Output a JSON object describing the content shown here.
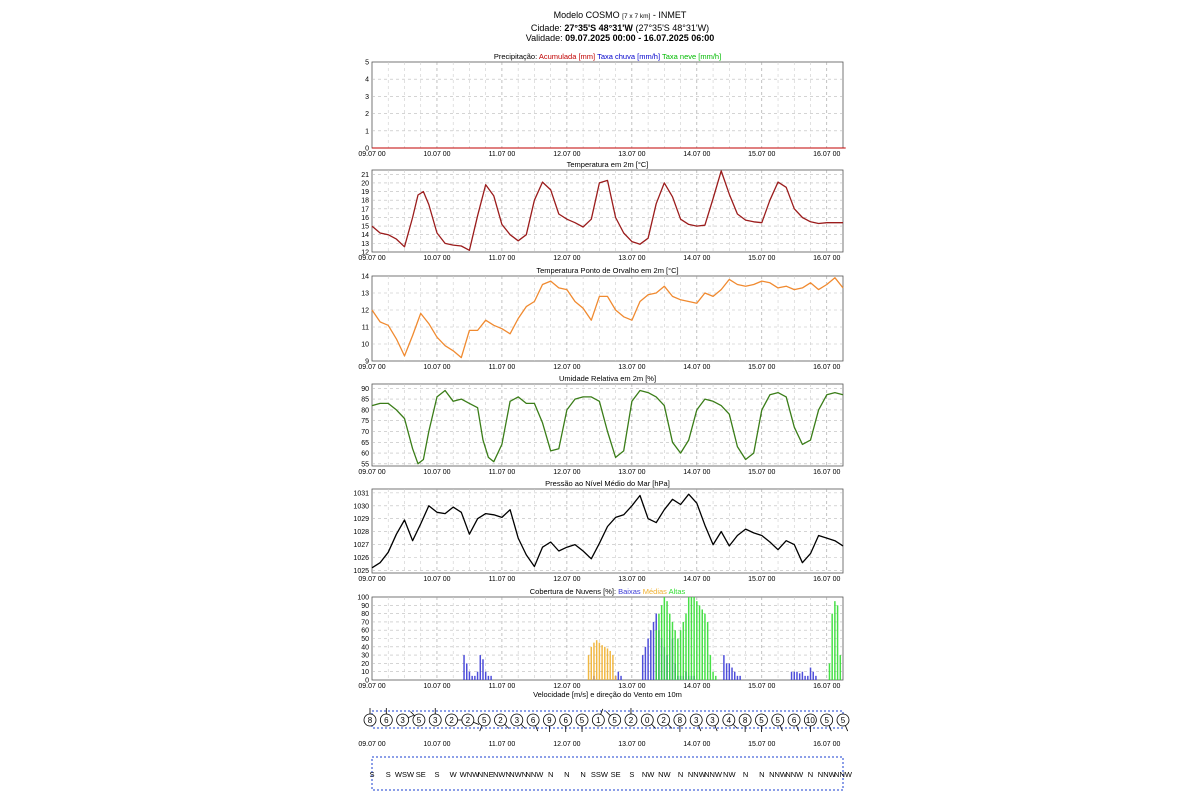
{
  "header": {
    "line1_prefix": "Modelo COSMO",
    "line1_res": "[7 x 7 km]",
    "line1_suffix": "- INMET",
    "city_label": "Cidade:",
    "city_coords": "27°35'S 48°31'W",
    "city_coords_alt": "(27°35'S 48°31'W)",
    "valid_label": "Validade:",
    "valid_range": "09.07.2025 00:00 - 16.07.2025 06:00"
  },
  "colors": {
    "accum": "#c00000",
    "rain": "#0000cc",
    "snow": "#00bb00",
    "temp": "#9b1c1c",
    "dew": "#f08a30",
    "hum": "#3a7d18",
    "press": "#000000",
    "low": "#3b3bd6",
    "mid": "#f0b030",
    "high": "#33dd33",
    "wind_box": "#1a3fd0"
  },
  "xticks": [
    "09.07 00",
    "10.07 00",
    "11.07 00",
    "12.07 00",
    "13.07 00",
    "14.07 00",
    "15.07 00",
    "16.07 00"
  ],
  "chart_data": [
    {
      "id": "precip",
      "type": "line",
      "title_parts": [
        {
          "text": "Precipitação: ",
          "color": "#000000"
        },
        {
          "text": "Acumulada [mm]",
          "color": "#c00000"
        },
        {
          "text": " Taxa chuva [mm/h]",
          "color": "#0000cc"
        },
        {
          "text": " Taxa neve [mm/h]",
          "color": "#00bb00"
        }
      ],
      "ylim": [
        0,
        5
      ],
      "yticks": [
        0,
        1,
        2,
        3,
        4,
        5
      ],
      "series": [
        {
          "color": "#c00000",
          "t": [
            0,
            175
          ],
          "values": [
            0,
            0
          ]
        }
      ]
    },
    {
      "id": "temp",
      "type": "line",
      "title_parts": [
        {
          "text": "Temperatura em 2m [°C]",
          "color": "#000000"
        }
      ],
      "ylim": [
        12,
        21.5
      ],
      "yticks": [
        12,
        13,
        14,
        15,
        16,
        17,
        18,
        19,
        20,
        21
      ],
      "series": [
        {
          "color": "#9b1c1c",
          "t": [
            0,
            3,
            6,
            9,
            12,
            15,
            17,
            19,
            21,
            24,
            27,
            30,
            33,
            36,
            39,
            42,
            45,
            48,
            51,
            54,
            57,
            60,
            63,
            66,
            69,
            72,
            75,
            78,
            81,
            84,
            87,
            90,
            93,
            96,
            99,
            102,
            105,
            108,
            111,
            114,
            117,
            120,
            123,
            126,
            129,
            132,
            135,
            138,
            141,
            144,
            147,
            150,
            153,
            156,
            159,
            162,
            165,
            168,
            171,
            174
          ],
          "values": [
            15.0,
            14.2,
            14.0,
            13.5,
            12.6,
            16.0,
            18.6,
            19.0,
            17.5,
            14.2,
            13.0,
            12.8,
            12.7,
            12.2,
            16.2,
            19.8,
            18.5,
            15.2,
            14.0,
            13.3,
            14.0,
            18.0,
            20.1,
            19.2,
            16.4,
            15.8,
            15.4,
            14.9,
            15.8,
            20.0,
            20.3,
            16.0,
            14.2,
            13.2,
            12.9,
            13.6,
            17.6,
            20.0,
            18.4,
            15.8,
            15.2,
            15.0,
            15.1,
            18.2,
            21.4,
            18.7,
            16.4,
            15.7,
            15.5,
            15.4,
            18.0,
            20.1,
            19.5,
            17.0,
            16.0,
            15.5,
            15.3,
            15.4,
            15.4,
            15.4
          ]
        }
      ]
    },
    {
      "id": "dew",
      "type": "line",
      "title_parts": [
        {
          "text": "Temperatura Ponto de Orvalho em 2m [°C]",
          "color": "#000000"
        }
      ],
      "ylim": [
        9,
        14
      ],
      "yticks": [
        9,
        10,
        11,
        12,
        13,
        14
      ],
      "series": [
        {
          "color": "#f08a30",
          "t": [
            0,
            3,
            6,
            9,
            12,
            15,
            18,
            21,
            24,
            27,
            30,
            33,
            36,
            39,
            42,
            45,
            48,
            51,
            54,
            57,
            60,
            63,
            66,
            69,
            72,
            75,
            78,
            81,
            84,
            87,
            90,
            93,
            96,
            99,
            102,
            105,
            108,
            111,
            114,
            117,
            120,
            123,
            126,
            129,
            132,
            135,
            138,
            141,
            144,
            147,
            150,
            153,
            156,
            159,
            162,
            165,
            168,
            171,
            174
          ],
          "values": [
            12.0,
            11.3,
            11.1,
            10.3,
            9.3,
            10.5,
            11.8,
            11.2,
            10.4,
            9.9,
            9.6,
            9.2,
            10.8,
            10.8,
            11.4,
            11.1,
            10.9,
            10.6,
            11.5,
            12.2,
            12.5,
            13.5,
            13.7,
            13.3,
            13.2,
            12.5,
            12.1,
            11.4,
            12.8,
            12.8,
            12.0,
            11.6,
            11.4,
            12.5,
            12.9,
            13.0,
            13.4,
            12.8,
            12.6,
            12.5,
            12.4,
            13.0,
            12.8,
            13.2,
            13.8,
            13.5,
            13.4,
            13.5,
            13.7,
            13.6,
            13.3,
            13.4,
            13.2,
            13.3,
            13.6,
            13.2,
            13.5,
            13.9,
            13.3
          ]
        }
      ]
    },
    {
      "id": "hum",
      "type": "line",
      "title_parts": [
        {
          "text": "Umidade Relativa em 2m [%]",
          "color": "#000000"
        }
      ],
      "ylim": [
        54,
        92
      ],
      "yticks": [
        55,
        60,
        65,
        70,
        75,
        80,
        85,
        90
      ],
      "series": [
        {
          "color": "#3a7d18",
          "t": [
            0,
            3,
            6,
            9,
            12,
            15,
            17,
            19,
            21,
            24,
            27,
            30,
            33,
            36,
            39,
            41,
            43,
            45,
            48,
            51,
            54,
            57,
            60,
            63,
            66,
            69,
            72,
            75,
            78,
            81,
            84,
            87,
            90,
            93,
            96,
            99,
            102,
            105,
            108,
            111,
            114,
            117,
            120,
            123,
            126,
            129,
            132,
            135,
            138,
            141,
            144,
            147,
            150,
            153,
            156,
            159,
            162,
            165,
            168,
            171,
            174
          ],
          "values": [
            82,
            83,
            83,
            80,
            76,
            62,
            55,
            57,
            70,
            86,
            89,
            84,
            85,
            83,
            81,
            66,
            58,
            56,
            64,
            84,
            86,
            83,
            83,
            74,
            61,
            62,
            80,
            85,
            86,
            86,
            84,
            70,
            58,
            61,
            84,
            89,
            88,
            86,
            82,
            65,
            60,
            66,
            80,
            85,
            84,
            82,
            78,
            63,
            57,
            60,
            80,
            87,
            88,
            86,
            72,
            64,
            66,
            80,
            87,
            88,
            87
          ]
        }
      ]
    },
    {
      "id": "press",
      "type": "line",
      "title_parts": [
        {
          "text": "Pressão ao Nível Médio do Mar [hPa]",
          "color": "#000000"
        }
      ],
      "ylim": [
        1024.8,
        1031.3
      ],
      "yticks": [
        1025,
        1026,
        1027,
        1028,
        1029,
        1030,
        1031
      ],
      "series": [
        {
          "color": "#000000",
          "t": [
            0,
            3,
            6,
            9,
            12,
            15,
            18,
            21,
            24,
            27,
            30,
            33,
            36,
            39,
            42,
            45,
            48,
            51,
            54,
            57,
            60,
            63,
            66,
            69,
            72,
            75,
            78,
            81,
            84,
            87,
            90,
            93,
            96,
            99,
            102,
            105,
            108,
            111,
            114,
            117,
            120,
            123,
            126,
            129,
            132,
            135,
            138,
            141,
            144,
            147,
            150,
            153,
            156,
            159,
            162,
            165,
            168,
            171,
            174
          ],
          "values": [
            1025.2,
            1025.6,
            1026.4,
            1027.8,
            1028.9,
            1027.3,
            1028.6,
            1030.0,
            1029.5,
            1029.4,
            1029.9,
            1029.5,
            1027.8,
            1029.0,
            1029.4,
            1029.3,
            1029.1,
            1029.7,
            1027.5,
            1026.2,
            1025.3,
            1026.8,
            1027.2,
            1026.5,
            1026.8,
            1027.0,
            1026.5,
            1025.9,
            1027.1,
            1028.4,
            1029.1,
            1029.3,
            1030.0,
            1030.8,
            1029.0,
            1028.7,
            1029.7,
            1030.5,
            1030.1,
            1030.9,
            1030.2,
            1028.5,
            1027.0,
            1028.0,
            1026.9,
            1027.7,
            1028.2,
            1027.9,
            1027.7,
            1027.2,
            1026.6,
            1027.3,
            1027.0,
            1025.6,
            1026.3,
            1027.7,
            1027.5,
            1027.3,
            1026.9
          ]
        }
      ]
    },
    {
      "id": "clouds",
      "type": "bar",
      "title_parts": [
        {
          "text": "Cobertura de Nuvens [%]: ",
          "color": "#000000"
        },
        {
          "text": "Baixas",
          "color": "#3b3bd6"
        },
        {
          "text": " Médias",
          "color": "#f0b030"
        },
        {
          "text": " Altas",
          "color": "#33dd33"
        }
      ],
      "ylim": [
        0,
        100
      ],
      "yticks": [
        0,
        10,
        20,
        30,
        40,
        50,
        60,
        70,
        80,
        90,
        100
      ],
      "series": [
        {
          "name": "Baixas",
          "color": "#3b3bd6",
          "t": [
            34,
            35,
            36,
            37,
            38,
            39,
            40,
            41,
            42,
            43,
            44,
            82,
            90,
            91,
            92,
            100,
            101,
            102,
            103,
            104,
            105,
            106,
            107,
            108,
            109,
            110,
            111,
            112,
            113,
            114,
            115,
            116,
            117,
            118,
            119,
            130,
            131,
            132,
            133,
            134,
            135,
            136,
            155,
            156,
            157,
            158,
            159,
            160,
            161,
            162,
            163,
            164
          ],
          "values": [
            30,
            20,
            10,
            5,
            5,
            10,
            30,
            25,
            10,
            5,
            5,
            5,
            5,
            10,
            5,
            30,
            40,
            50,
            60,
            70,
            80,
            60,
            50,
            40,
            30,
            60,
            50,
            20,
            5,
            5,
            5,
            10,
            5,
            5,
            5,
            30,
            20,
            20,
            15,
            10,
            5,
            5,
            10,
            10,
            10,
            8,
            10,
            5,
            5,
            15,
            10,
            5
          ]
        },
        {
          "name": "Médias",
          "color": "#f0b030",
          "t": [
            80,
            81,
            82,
            83,
            84,
            85,
            86,
            87,
            88,
            89,
            90
          ],
          "values": [
            30,
            40,
            45,
            48,
            45,
            42,
            40,
            38,
            35,
            30,
            5
          ]
        },
        {
          "name": "Altas",
          "color": "#33dd33",
          "t": [
            105,
            106,
            107,
            108,
            109,
            110,
            111,
            112,
            113,
            114,
            115,
            116,
            117,
            118,
            119,
            120,
            121,
            122,
            123,
            124,
            125,
            126,
            127,
            169,
            170,
            171,
            172,
            173
          ],
          "values": [
            60,
            80,
            90,
            100,
            95,
            80,
            70,
            60,
            50,
            60,
            70,
            80,
            100,
            100,
            100,
            95,
            90,
            85,
            80,
            70,
            30,
            10,
            5,
            20,
            80,
            95,
            90,
            30
          ]
        }
      ]
    }
  ],
  "wind": {
    "title": "Velocidade [m/s] e direção do Vento em 10m",
    "speeds": [
      "8",
      "6",
      "3",
      "5",
      "3",
      "2",
      "2",
      "5",
      "2",
      "3",
      "6",
      "9",
      "6",
      "5",
      "1",
      "5",
      "2",
      "0",
      "2",
      "8",
      "3",
      "3",
      "4",
      "8",
      "5",
      "5",
      "6",
      "10",
      "5",
      "5"
    ],
    "directions": [
      "S",
      "S",
      "WSW",
      "SE",
      "S",
      "W",
      "WNW",
      "NNE",
      "NWN",
      "NWN",
      "NNW",
      "N",
      "N",
      "N",
      "SSW",
      "SE",
      "S",
      "NW",
      "NW",
      "N",
      "NNW",
      "NNW",
      "NW",
      "N",
      "N",
      "NNW",
      "NNW",
      "N",
      "NNW",
      "NNW"
    ]
  }
}
